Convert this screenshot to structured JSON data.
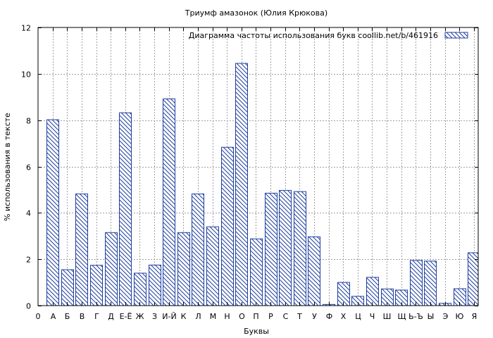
{
  "chart_data": {
    "type": "bar",
    "title": "Триумф амазонок (Юлия Крюкова)",
    "xlabel": "Буквы",
    "ylabel": "% использования в тексте",
    "legend": {
      "label": "Диаграмма частоты использования букв  coollib.net/b/461916",
      "placement": "top-right"
    },
    "grid": true,
    "ylim": [
      0,
      12
    ],
    "yticks": [
      0,
      2,
      4,
      6,
      8,
      10,
      12
    ],
    "x_tick_first": "0",
    "categories": [
      "А",
      "Б",
      "В",
      "Г",
      "Д",
      "Е-Ё",
      "Ж",
      "З",
      "И-Й",
      "К",
      "Л",
      "М",
      "Н",
      "О",
      "П",
      "Р",
      "С",
      "Т",
      "У",
      "Ф",
      "Х",
      "Ц",
      "Ч",
      "Ш",
      "Щ",
      "Ь-Ъ",
      "Ы",
      "Э",
      "Ю",
      "Я"
    ],
    "values": [
      8.02,
      1.55,
      4.82,
      1.74,
      3.15,
      8.32,
      1.4,
      1.75,
      8.92,
      3.15,
      4.82,
      3.4,
      6.83,
      10.45,
      2.88,
      4.85,
      4.97,
      4.92,
      2.97,
      0.05,
      1.0,
      0.4,
      1.22,
      0.72,
      0.67,
      1.95,
      1.92,
      0.1,
      0.73,
      2.28
    ],
    "colors": {
      "bar_stroke": "#1f3f9f",
      "hatch": "#1f3f9f",
      "grid": "#a0a0a0",
      "axis": "#000000"
    }
  }
}
